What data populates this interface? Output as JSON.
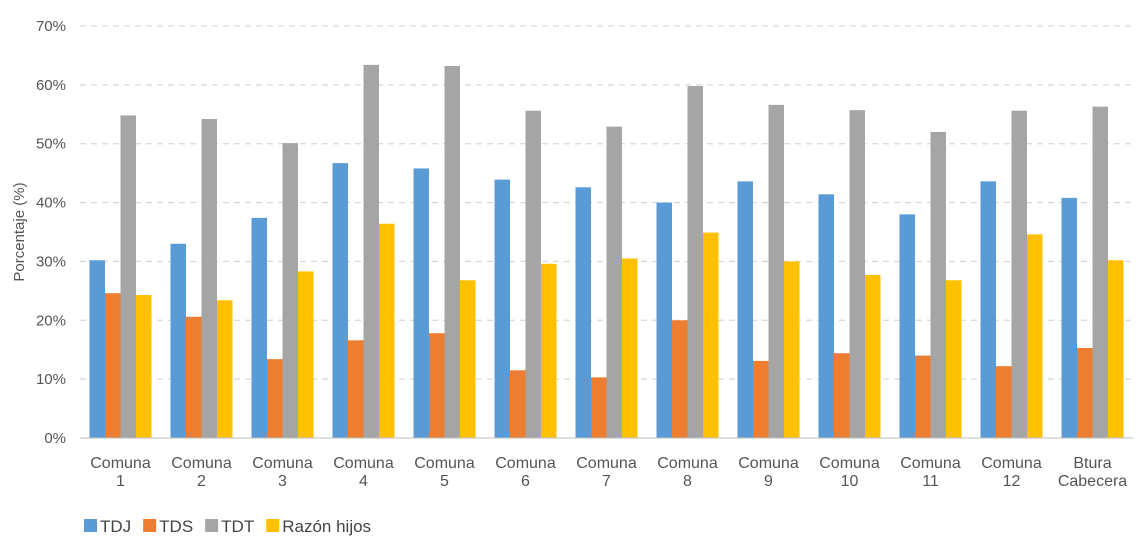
{
  "chart_data": {
    "type": "bar",
    "title": "",
    "xlabel": "",
    "ylabel": "Porcentaje (%)",
    "ylim": [
      0,
      70
    ],
    "yticks": [
      "0%",
      "10%",
      "20%",
      "30%",
      "40%",
      "50%",
      "60%",
      "70%"
    ],
    "grid": true,
    "legend_position": "bottom-left",
    "categories": [
      [
        "Comuna",
        "1"
      ],
      [
        "Comuna",
        "2"
      ],
      [
        "Comuna",
        "3"
      ],
      [
        "Comuna",
        "4"
      ],
      [
        "Comuna",
        "5"
      ],
      [
        "Comuna",
        "6"
      ],
      [
        "Comuna",
        "7"
      ],
      [
        "Comuna",
        "8"
      ],
      [
        "Comuna",
        "9"
      ],
      [
        "Comuna",
        "10"
      ],
      [
        "Comuna",
        "11"
      ],
      [
        "Comuna",
        "12"
      ],
      [
        "Btura",
        "Cabecera"
      ]
    ],
    "series": [
      {
        "name": "TDJ",
        "color": "#5b9bd5",
        "values": [
          30.2,
          33.0,
          37.4,
          46.7,
          45.8,
          43.9,
          42.6,
          40.0,
          43.6,
          41.4,
          38.0,
          43.6,
          40.8
        ]
      },
      {
        "name": "TDS",
        "color": "#ed7d31",
        "values": [
          24.6,
          20.6,
          13.4,
          16.6,
          17.8,
          11.5,
          10.3,
          20.0,
          13.1,
          14.4,
          14.0,
          12.2,
          15.3
        ]
      },
      {
        "name": "TDT",
        "color": "#a5a5a5",
        "values": [
          54.8,
          54.2,
          50.1,
          63.4,
          63.2,
          55.6,
          52.9,
          59.8,
          56.6,
          55.7,
          52.0,
          55.6,
          56.3
        ]
      },
      {
        "name": "Razón hijos",
        "color": "#ffc000",
        "values": [
          24.3,
          23.4,
          28.3,
          36.4,
          26.8,
          29.6,
          30.5,
          34.9,
          30.0,
          27.7,
          26.8,
          34.6,
          30.2
        ]
      }
    ]
  }
}
